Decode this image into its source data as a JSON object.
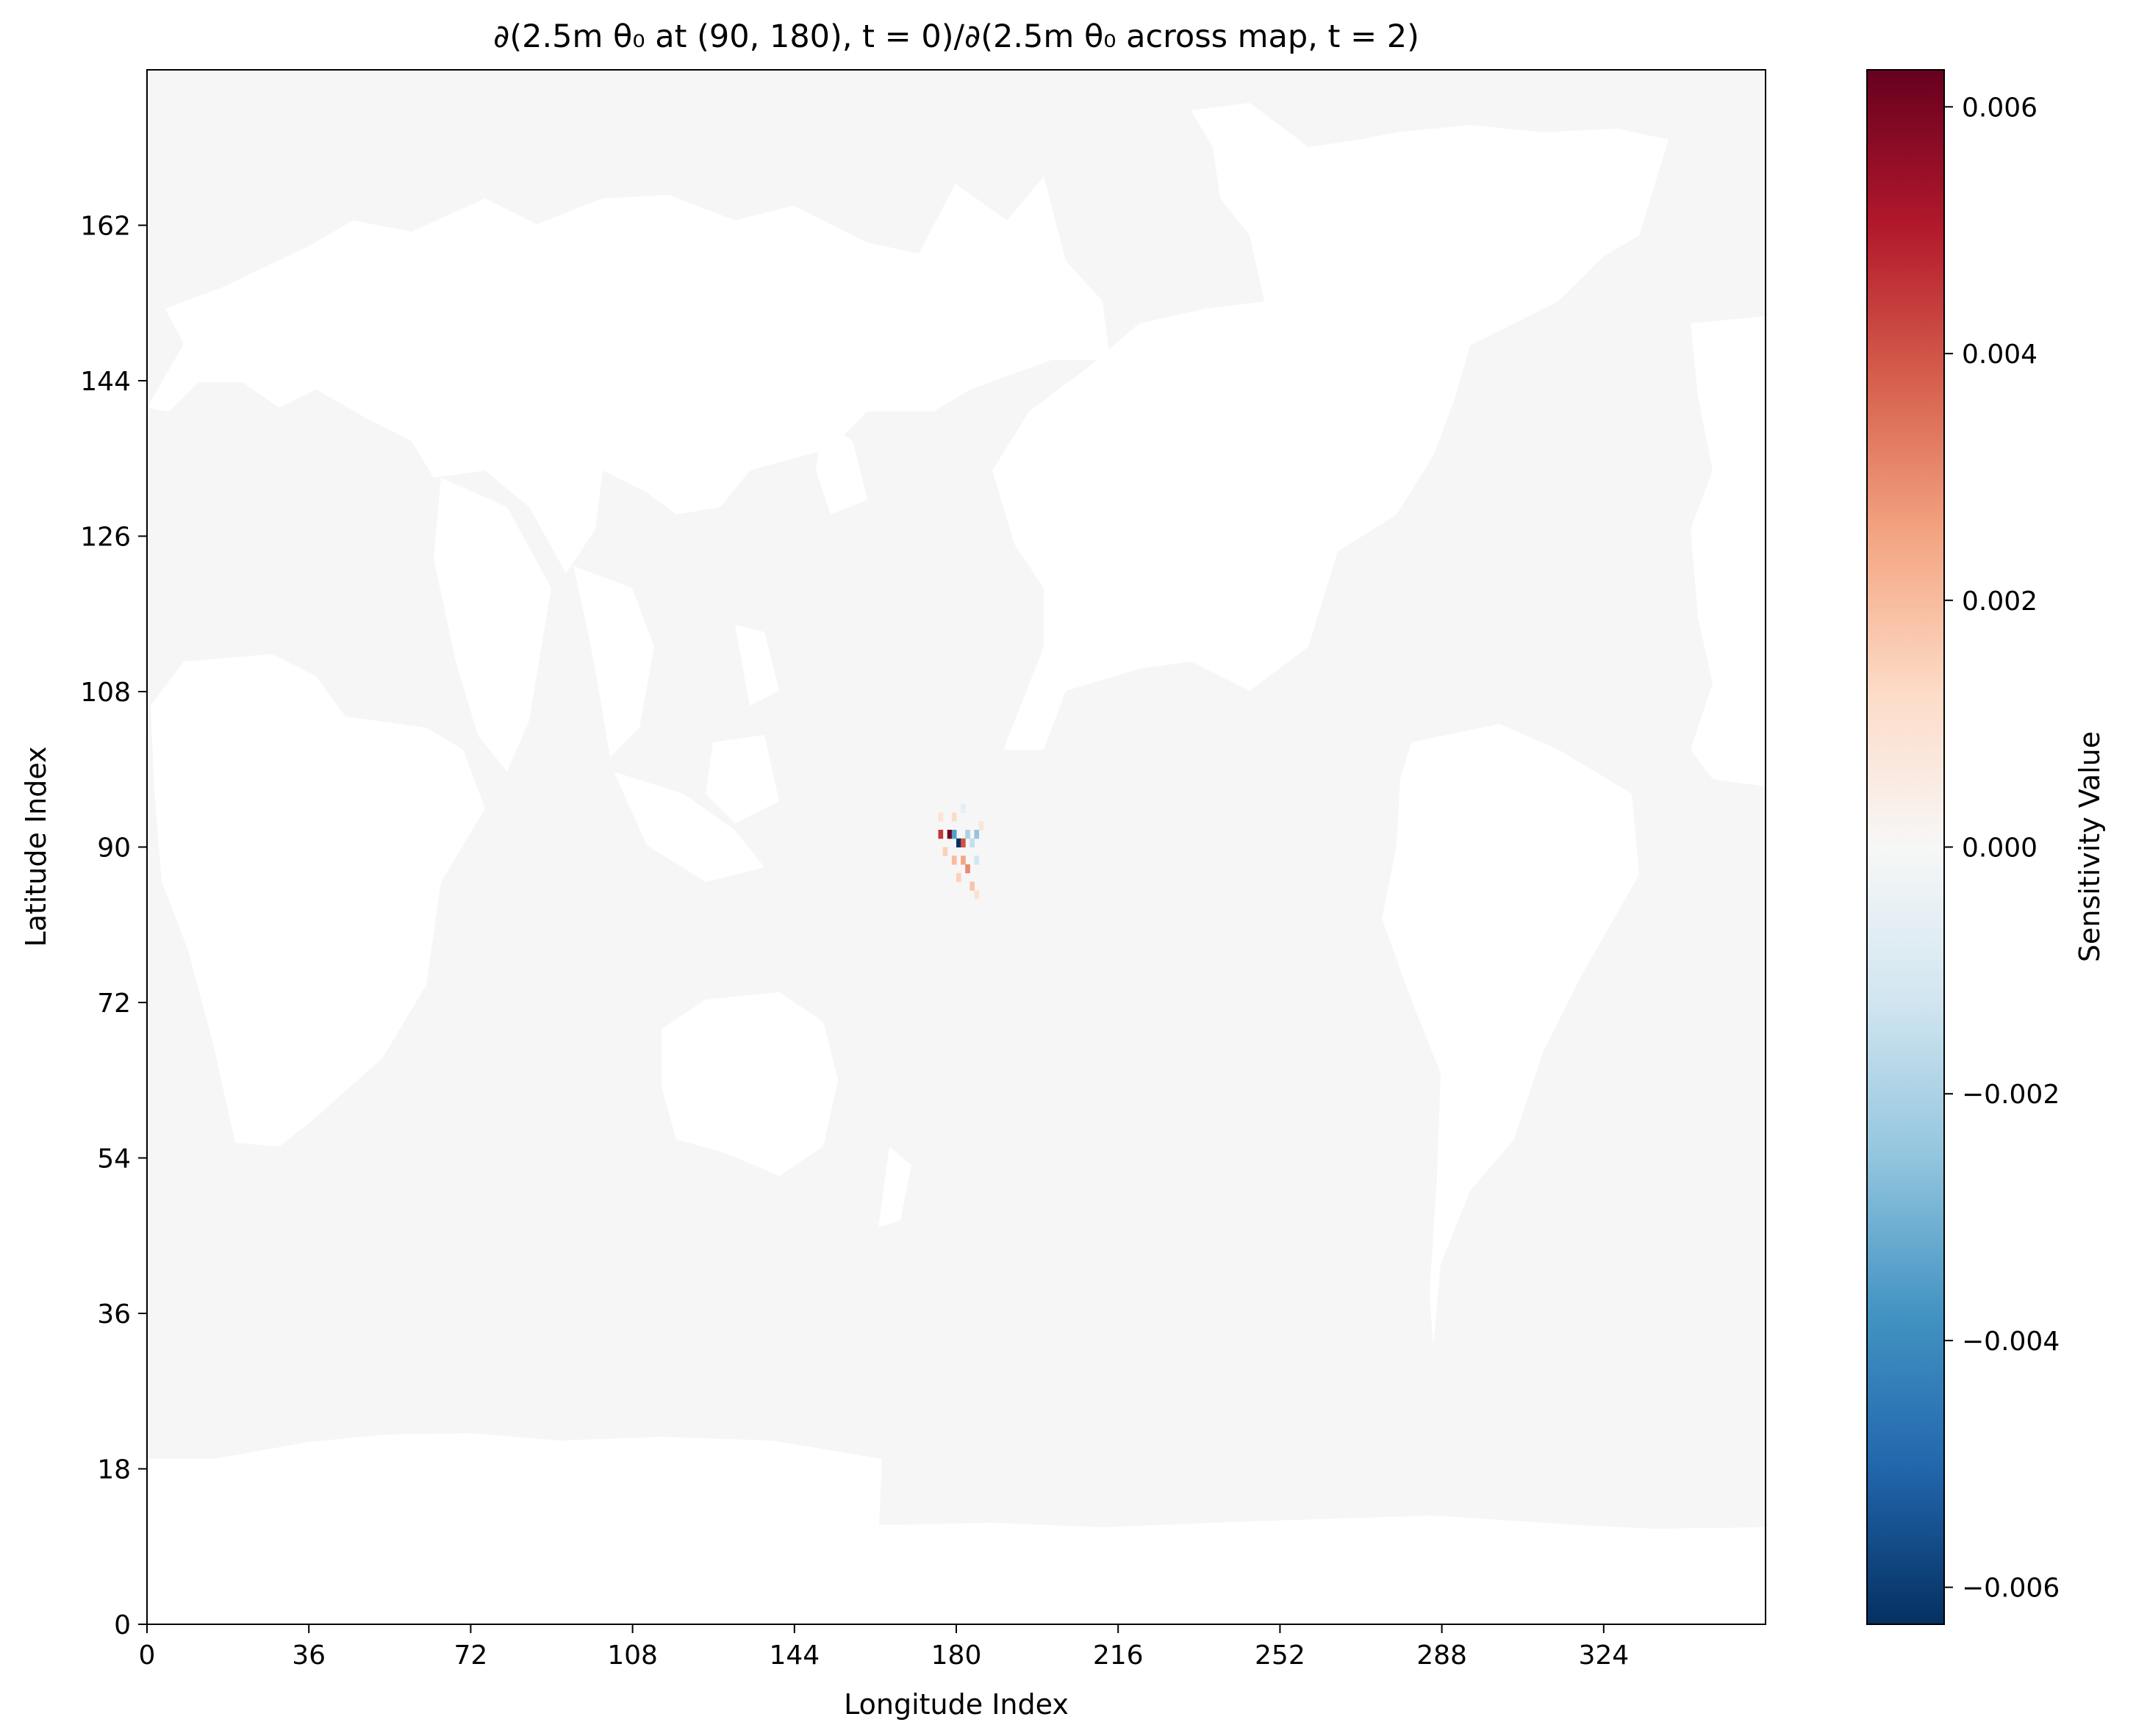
{
  "chart_data": {
    "type": "heatmap",
    "title": "∂(2.5m θ₀ at (90, 180), t = 0)/∂(2.5m θ₀ across map, t = 2)",
    "xlabel": "Longitude Index",
    "ylabel": "Latitude Index",
    "xlim": [
      0,
      360
    ],
    "ylim": [
      0,
      180
    ],
    "x_ticks": [
      0,
      36,
      72,
      108,
      144,
      180,
      216,
      252,
      288,
      324
    ],
    "y_ticks": [
      0,
      18,
      36,
      54,
      72,
      90,
      108,
      126,
      144,
      162
    ],
    "colormap": "RdBu_r",
    "land_color": "#ffffff",
    "ocean_background_color": "#f6f6f6",
    "colorbar": {
      "label": "Sensitivity Value",
      "range": [
        -0.0063,
        0.0063
      ],
      "ticks": [
        -0.006,
        -0.004,
        -0.002,
        0.0,
        0.002,
        0.004,
        0.006
      ],
      "tick_labels": [
        "−0.006",
        "−0.004",
        "−0.002",
        "0.000",
        "0.002",
        "0.004",
        "0.006"
      ]
    },
    "grid": false,
    "hotspots": [
      {
        "lon": 180,
        "lat": 90,
        "value": -0.0063
      },
      {
        "lon": 178,
        "lat": 91,
        "value": 0.0062
      },
      {
        "lon": 176,
        "lat": 91,
        "value": 0.0045
      },
      {
        "lon": 179,
        "lat": 91,
        "value": -0.0035
      },
      {
        "lon": 181,
        "lat": 90,
        "value": 0.004
      },
      {
        "lon": 182,
        "lat": 91,
        "value": -0.002
      },
      {
        "lon": 183,
        "lat": 90,
        "value": -0.0015
      },
      {
        "lon": 184,
        "lat": 91,
        "value": -0.0025
      },
      {
        "lon": 181,
        "lat": 88,
        "value": 0.0025
      },
      {
        "lon": 179,
        "lat": 88,
        "value": 0.002
      },
      {
        "lon": 182,
        "lat": 87,
        "value": 0.003
      },
      {
        "lon": 180,
        "lat": 86,
        "value": 0.0015
      },
      {
        "lon": 183,
        "lat": 85,
        "value": 0.0018
      },
      {
        "lon": 179,
        "lat": 93,
        "value": 0.0012
      },
      {
        "lon": 177,
        "lat": 89,
        "value": 0.0015
      },
      {
        "lon": 184,
        "lat": 88,
        "value": -0.0012
      },
      {
        "lon": 185,
        "lat": 92,
        "value": 0.0008
      },
      {
        "lon": 176,
        "lat": 93,
        "value": 0.0009
      },
      {
        "lon": 184,
        "lat": 84,
        "value": 0.001
      },
      {
        "lon": 181,
        "lat": 94,
        "value": -0.0006
      }
    ]
  }
}
